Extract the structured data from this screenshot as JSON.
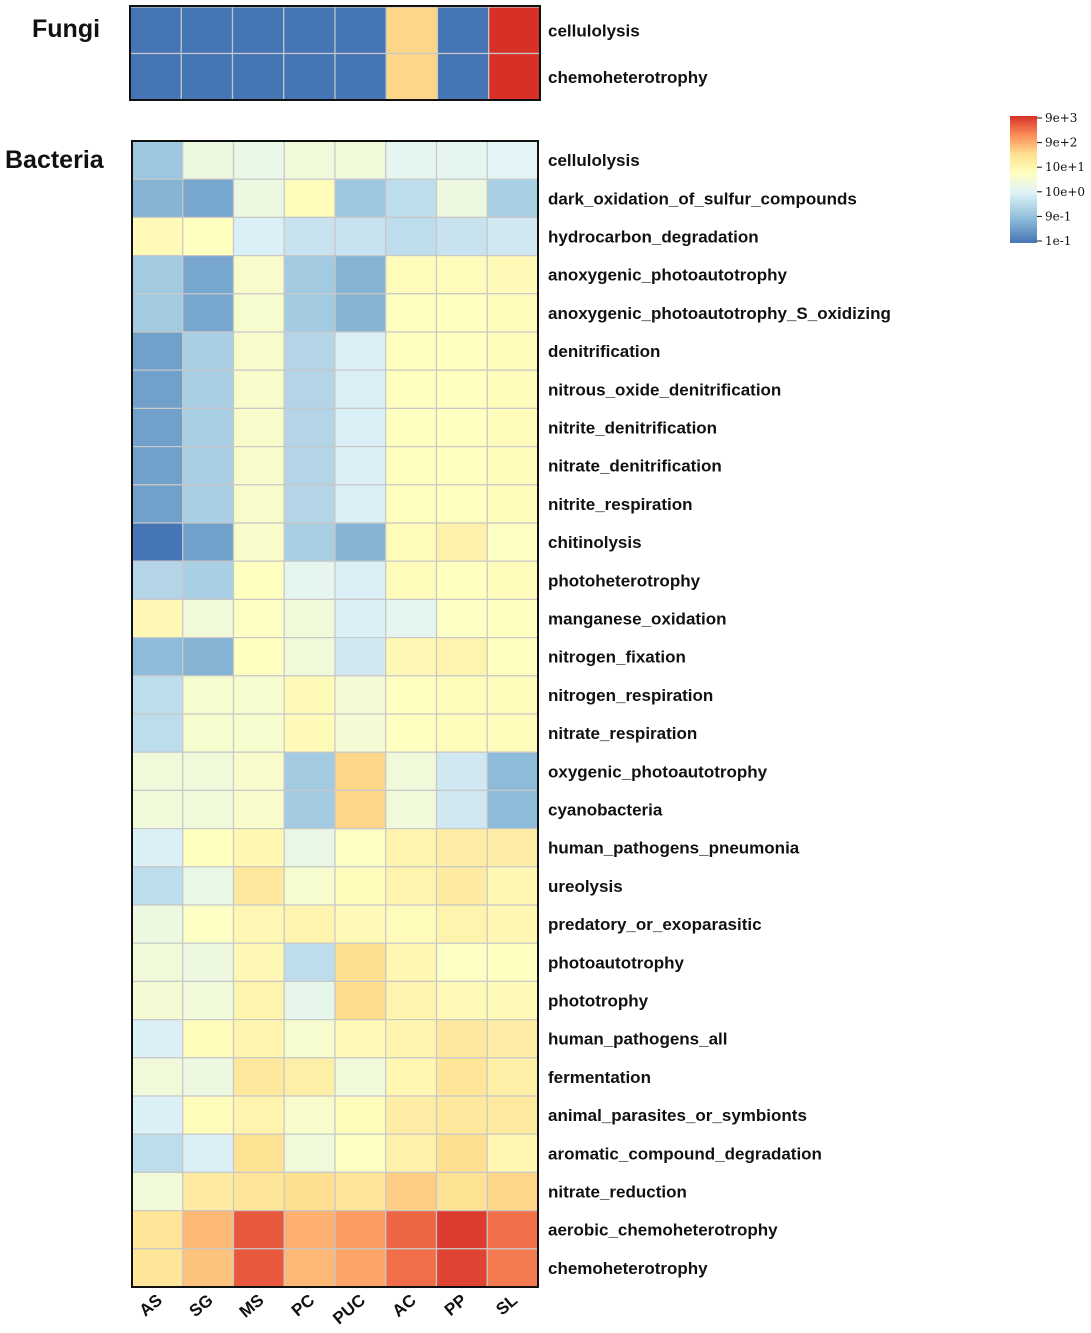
{
  "chart_data": {
    "type": "heatmap",
    "title": "",
    "columns": [
      "AS",
      "SG",
      "MS",
      "PC",
      "PUC",
      "AC",
      "PP",
      "SL"
    ],
    "scale": {
      "type": "log10",
      "min": 0.1,
      "max": 9000,
      "colors": [
        "#4575b4",
        "#91bfdb",
        "#e0f3f8",
        "#ffffbf",
        "#fee090",
        "#fc8d59",
        "#d73027"
      ],
      "legend_labels": [
        "9e+3",
        "9e+2",
        "10e+1",
        "10e+0",
        "9e-1",
        "1e-1"
      ],
      "legend_placement": "top-right"
    },
    "panels": [
      {
        "title": "Fungi",
        "rows": [
          "cellulolysis",
          "chemoheterotrophy"
        ],
        "values": [
          [
            0.1,
            0.1,
            0.1,
            0.1,
            0.1,
            250,
            0.1,
            9000
          ],
          [
            0.1,
            0.1,
            0.1,
            0.1,
            0.1,
            250,
            0.1,
            9000
          ]
        ]
      },
      {
        "title": "Bacteria",
        "rows": [
          "cellulolysis",
          "dark_oxidation_of_sulfur_compounds",
          "hydrocarbon_degradation",
          "anoxygenic_photoautotrophy",
          "anoxygenic_photoautotrophy_S_oxidizing",
          "denitrification",
          "nitrous_oxide_denitrification",
          "nitrite_denitrification",
          "nitrate_denitrification",
          "nitrite_respiration",
          "chitinolysis",
          "photoheterotrophy",
          "manganese_oxidation",
          "nitrogen_fixation",
          "nitrogen_respiration",
          "nitrate_respiration",
          "oxygenic_photoautotrophy",
          "cyanobacteria",
          "human_pathogens_pneumonia",
          "ureolysis",
          "predatory_or_exoparasitic",
          "photoautotrophy",
          "phototrophy",
          "human_pathogens_all",
          "fermentation",
          "animal_parasites_or_symbionts",
          "aromatic_compound_degradation",
          "nitrate_reduction",
          "aerobic_chemoheterotrophy",
          "chemoheterotrophy"
        ],
        "values": [
          [
            0.9,
            10,
            8,
            12,
            12,
            6,
            6,
            5
          ],
          [
            0.5,
            0.35,
            10,
            35,
            0.9,
            2,
            10,
            1.2
          ],
          [
            40,
            30,
            4,
            2.5,
            2.5,
            2,
            2.5,
            3
          ],
          [
            1,
            0.35,
            20,
            1,
            0.5,
            35,
            35,
            40
          ],
          [
            1,
            0.35,
            18,
            1,
            0.5,
            30,
            30,
            35
          ],
          [
            0.3,
            1.2,
            20,
            1.5,
            4,
            30,
            30,
            35
          ],
          [
            0.3,
            1.2,
            20,
            1.5,
            4,
            30,
            30,
            35
          ],
          [
            0.3,
            1.2,
            20,
            1.5,
            4,
            30,
            30,
            35
          ],
          [
            0.3,
            1.2,
            20,
            1.5,
            4,
            30,
            30,
            35
          ],
          [
            0.3,
            1.2,
            20,
            1.5,
            4,
            30,
            30,
            35
          ],
          [
            0.1,
            0.3,
            20,
            1.2,
            0.5,
            35,
            70,
            25
          ],
          [
            1.5,
            1.2,
            30,
            6,
            4,
            35,
            30,
            35
          ],
          [
            45,
            12,
            25,
            12,
            4,
            6,
            25,
            30
          ],
          [
            0.6,
            0.5,
            30,
            12,
            3,
            45,
            60,
            30
          ],
          [
            2,
            18,
            18,
            40,
            15,
            30,
            35,
            35
          ],
          [
            2,
            18,
            18,
            40,
            15,
            30,
            35,
            35
          ],
          [
            12,
            12,
            20,
            1,
            250,
            12,
            3,
            0.6
          ],
          [
            12,
            12,
            20,
            1,
            250,
            12,
            3,
            0.6
          ],
          [
            4,
            30,
            50,
            8,
            25,
            60,
            90,
            90
          ],
          [
            2,
            8,
            120,
            18,
            35,
            60,
            100,
            50
          ],
          [
            10,
            25,
            45,
            60,
            40,
            35,
            60,
            50
          ],
          [
            12,
            10,
            45,
            2,
            200,
            50,
            25,
            30
          ],
          [
            15,
            12,
            60,
            7,
            220,
            60,
            40,
            40
          ],
          [
            4,
            35,
            60,
            18,
            40,
            60,
            120,
            90
          ],
          [
            12,
            10,
            120,
            80,
            12,
            50,
            150,
            80
          ],
          [
            4,
            35,
            60,
            20,
            35,
            90,
            120,
            110
          ],
          [
            2,
            4,
            180,
            12,
            25,
            70,
            200,
            50
          ],
          [
            12,
            100,
            150,
            200,
            150,
            300,
            180,
            250
          ],
          [
            150,
            500,
            4000,
            600,
            1000,
            3000,
            7000,
            2500
          ],
          [
            150,
            400,
            4000,
            500,
            800,
            2500,
            6000,
            2000
          ]
        ]
      }
    ]
  }
}
